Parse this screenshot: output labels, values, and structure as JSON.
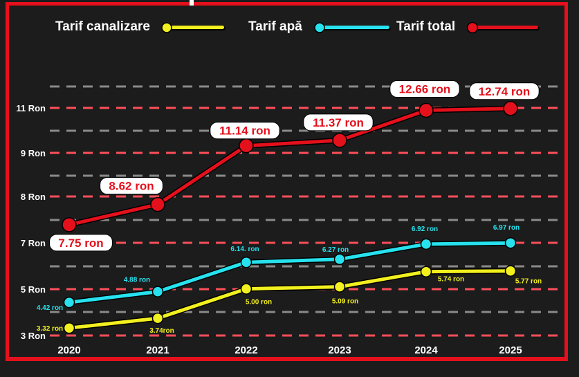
{
  "legend": [
    {
      "label": "Tarif canalizare",
      "color": "#f2f01e"
    },
    {
      "label": "Tarif apă",
      "color": "#27e2ee"
    },
    {
      "label": "Tarif total",
      "color": "#e4101c"
    }
  ],
  "chart_data": {
    "type": "line",
    "title": "",
    "xlabel": "",
    "ylabel": "",
    "x": [
      "2020",
      "2021",
      "2022",
      "2023",
      "2024",
      "2025"
    ],
    "y_ticks": [
      "3 Ron",
      "5 Ron",
      "7 Ron",
      "8 Ron",
      "9 Ron",
      "11 Ron"
    ],
    "grid": true,
    "legend_position": "top",
    "series": [
      {
        "name": "Tarif canalizare",
        "color": "#f2f01e",
        "values": [
          3.32,
          3.74,
          5.0,
          5.09,
          5.74,
          5.77
        ],
        "labels": [
          "3.32 ron",
          "3.74ron",
          "5.00 ron",
          "5.09 ron",
          "5.74 ron",
          "5.77 ron"
        ]
      },
      {
        "name": "Tarif apă",
        "color": "#27e2ee",
        "values": [
          4.42,
          4.88,
          6.14,
          6.27,
          6.92,
          6.97
        ],
        "labels": [
          "4.42 ron",
          "4.88 ron",
          "6.14. ron",
          "6.27 ron",
          "6.92 ron",
          "6.97 ron"
        ]
      },
      {
        "name": "Tarif total",
        "color": "#e4101c",
        "values": [
          7.75,
          8.62,
          11.14,
          11.37,
          12.66,
          12.74
        ],
        "labels": [
          "7.75 ron",
          "8.62 ron",
          "11.14 ron",
          "11.37 ron",
          "12.66 ron",
          "12.74 ron"
        ]
      }
    ]
  }
}
